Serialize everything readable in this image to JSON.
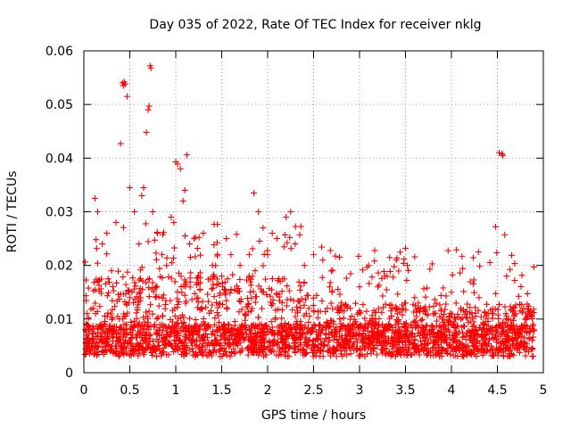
{
  "chart_data": {
    "type": "scatter",
    "title": "Day 035 of 2022, Rate Of TEC Index for receiver nklg",
    "xlabel": "GPS time / hours",
    "ylabel": "ROTI / TECUs",
    "xlim": [
      0,
      5
    ],
    "ylim": [
      0,
      0.06
    ],
    "x_ticks": [
      "0",
      "0.5",
      "1",
      "1.5",
      "2",
      "2.5",
      "3",
      "3.5",
      "4",
      "4.5",
      "5"
    ],
    "y_ticks": [
      "0",
      "0.01",
      "0.02",
      "0.03",
      "0.04",
      "0.05",
      "0.06"
    ],
    "grid": true,
    "marker": "+",
    "marker_color": "#ff0000",
    "series": [
      {
        "name": "ROTI",
        "points": [
          [
            0.05,
            0.004
          ],
          [
            0.1,
            0.012
          ],
          [
            0.12,
            0.0325
          ],
          [
            0.15,
            0.03
          ],
          [
            0.2,
            0.024
          ],
          [
            0.25,
            0.026
          ],
          [
            0.3,
            0.019
          ],
          [
            0.35,
            0.028
          ],
          [
            0.4,
            0.0427
          ],
          [
            0.42,
            0.054
          ],
          [
            0.43,
            0.0535
          ],
          [
            0.44,
            0.0542
          ],
          [
            0.45,
            0.0538
          ],
          [
            0.47,
            0.0515
          ],
          [
            0.5,
            0.0345
          ],
          [
            0.55,
            0.03
          ],
          [
            0.6,
            0.024
          ],
          [
            0.63,
            0.033
          ],
          [
            0.65,
            0.0345
          ],
          [
            0.68,
            0.0448
          ],
          [
            0.7,
            0.049
          ],
          [
            0.71,
            0.0497
          ],
          [
            0.72,
            0.0572
          ],
          [
            0.73,
            0.0568
          ],
          [
            0.75,
            0.03
          ],
          [
            0.8,
            0.026
          ],
          [
            0.85,
            0.022
          ],
          [
            0.9,
            0.02
          ],
          [
            0.95,
            0.029
          ],
          [
            0.98,
            0.028
          ],
          [
            1.0,
            0.0393
          ],
          [
            1.02,
            0.0389
          ],
          [
            1.05,
            0.038
          ],
          [
            1.08,
            0.032
          ],
          [
            1.1,
            0.034
          ],
          [
            1.12,
            0.0406
          ],
          [
            1.15,
            0.024
          ],
          [
            1.2,
            0.025
          ],
          [
            1.3,
            0.026
          ],
          [
            1.4,
            0.02
          ],
          [
            1.5,
            0.018
          ],
          [
            1.55,
            0.025
          ],
          [
            1.6,
            0.022
          ],
          [
            1.7,
            0.02
          ],
          [
            1.8,
            0.022
          ],
          [
            1.85,
            0.0335
          ],
          [
            1.9,
            0.03
          ],
          [
            1.95,
            0.027
          ],
          [
            2.0,
            0.022
          ],
          [
            2.05,
            0.026
          ],
          [
            2.1,
            0.025
          ],
          [
            2.2,
            0.029
          ],
          [
            2.25,
            0.03
          ],
          [
            2.3,
            0.024
          ],
          [
            2.4,
            0.02
          ],
          [
            2.5,
            0.022
          ],
          [
            2.6,
            0.021
          ],
          [
            2.7,
            0.015
          ],
          [
            2.8,
            0.013
          ],
          [
            2.9,
            0.012
          ],
          [
            3.0,
            0.016
          ],
          [
            3.1,
            0.02
          ],
          [
            3.2,
            0.016
          ],
          [
            3.3,
            0.018
          ],
          [
            3.4,
            0.021
          ],
          [
            3.5,
            0.0232
          ],
          [
            3.52,
            0.02
          ],
          [
            3.6,
            0.014
          ],
          [
            3.7,
            0.012
          ],
          [
            3.8,
            0.011
          ],
          [
            3.9,
            0.01
          ],
          [
            4.0,
            0.015
          ],
          [
            4.1,
            0.012
          ],
          [
            4.2,
            0.011
          ],
          [
            4.3,
            0.014
          ],
          [
            4.4,
            0.011
          ],
          [
            4.48,
            0.0272
          ],
          [
            4.52,
            0.041
          ],
          [
            4.55,
            0.0408
          ],
          [
            4.56,
            0.0405
          ],
          [
            4.58,
            0.0257
          ],
          [
            4.6,
            0.018
          ],
          [
            4.7,
            0.011
          ],
          [
            4.8,
            0.01
          ],
          [
            4.9,
            0.008
          ]
        ]
      }
    ]
  }
}
